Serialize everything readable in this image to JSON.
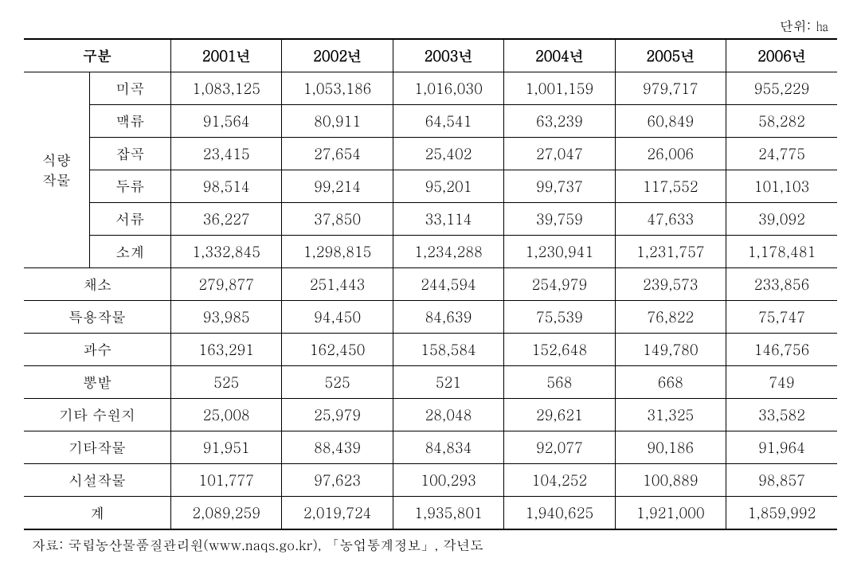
{
  "unit_label": "단위: ㏊",
  "header": {
    "category": "구분",
    "years": [
      "2001년",
      "2002년",
      "2003년",
      "2004년",
      "2005년",
      "2006년"
    ]
  },
  "food_crops": {
    "group_label": "식량\n작물",
    "rows": [
      {
        "label": "미곡",
        "values": [
          "1,083,125",
          "1,053,186",
          "1,016,030",
          "1,001,159",
          "979,717",
          "955,229"
        ]
      },
      {
        "label": "맥류",
        "values": [
          "91,564",
          "80,911",
          "64,541",
          "63,239",
          "60,849",
          "58,282"
        ]
      },
      {
        "label": "잡곡",
        "values": [
          "23,415",
          "27,654",
          "25,402",
          "27,047",
          "26,006",
          "24,775"
        ]
      },
      {
        "label": "두류",
        "values": [
          "98,514",
          "99,214",
          "95,201",
          "99,737",
          "117,552",
          "101,103"
        ]
      },
      {
        "label": "서류",
        "values": [
          "36,227",
          "37,850",
          "33,114",
          "39,759",
          "47,633",
          "39,092"
        ]
      },
      {
        "label": "소계",
        "values": [
          "1,332,845",
          "1,298,815",
          "1,234,288",
          "1,230,941",
          "1,231,757",
          "1,178,481"
        ]
      }
    ]
  },
  "other_rows": [
    {
      "label": "채소",
      "values": [
        "279,877",
        "251,443",
        "244,594",
        "254,979",
        "239,573",
        "233,856"
      ]
    },
    {
      "label": "특용작물",
      "values": [
        "93,985",
        "94,450",
        "84,639",
        "75,539",
        "76,822",
        "75,747"
      ]
    },
    {
      "label": "과수",
      "values": [
        "163,291",
        "162,450",
        "158,584",
        "152,648",
        "149,780",
        "146,756"
      ]
    },
    {
      "label": "뽕밭",
      "values": [
        "525",
        "525",
        "521",
        "568",
        "668",
        "749"
      ]
    },
    {
      "label": "기타 수원지",
      "values": [
        "25,008",
        "25,979",
        "28,048",
        "29,621",
        "31,325",
        "33,582"
      ]
    },
    {
      "label": "기타작물",
      "values": [
        "91,951",
        "88,439",
        "84,834",
        "92,077",
        "90,186",
        "91,964"
      ]
    },
    {
      "label": "시설작물",
      "values": [
        "101,777",
        "97,623",
        "100,293",
        "104,252",
        "100,889",
        "98,857"
      ]
    }
  ],
  "total_row": {
    "label": "계",
    "values": [
      "2,089,259",
      "2,019,724",
      "1,935,801",
      "1,940,625",
      "1,921,000",
      "1,859,992"
    ]
  },
  "source": "자료: 국립농산물품질관리원(www.naqs.go.kr), 「농업통계정보」, 각년도"
}
